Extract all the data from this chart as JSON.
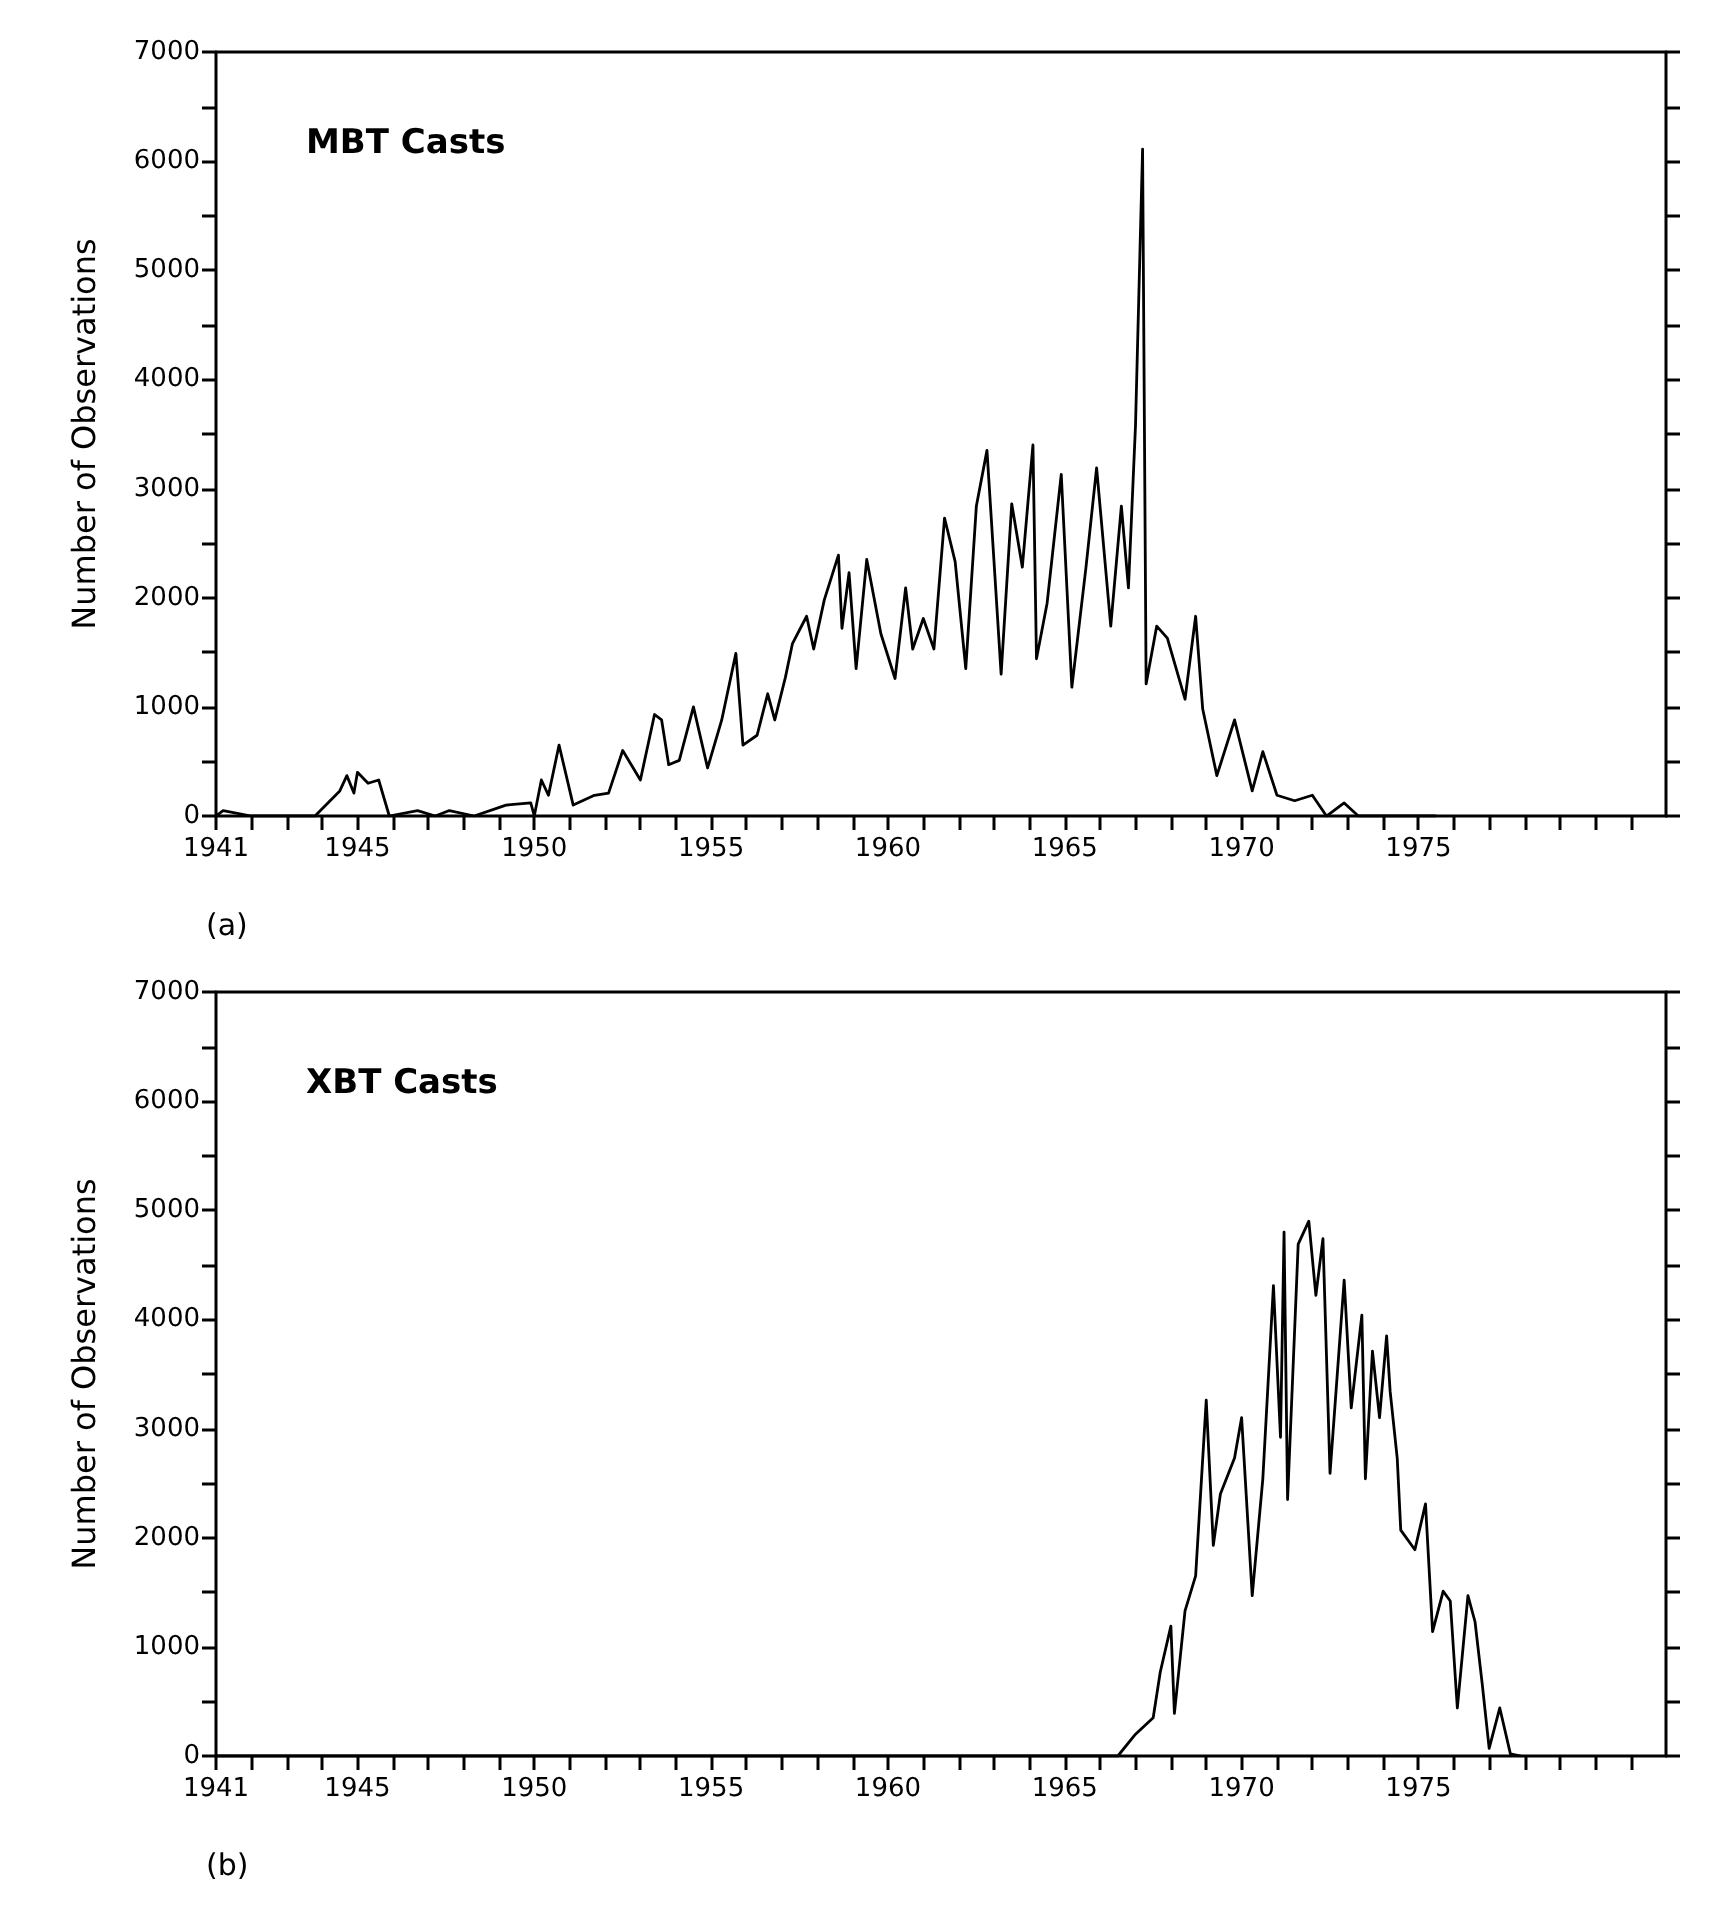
{
  "chart_data": [
    {
      "type": "line",
      "title": "MBT Casts",
      "ylabel": "Number of Observations",
      "annotations": [
        "(a)"
      ],
      "grid": false,
      "marker": "none",
      "line_style": "solid",
      "xlim": [
        1941,
        1982
      ],
      "ylim": [
        0,
        7000
      ],
      "xticks": [
        1941,
        {
          "value": 1942,
          "label": null
        },
        {
          "value": 1943,
          "label": null
        },
        {
          "value": 1944,
          "label": null
        },
        1945,
        {
          "value": 1946,
          "label": null
        },
        {
          "value": 1947,
          "label": null
        },
        {
          "value": 1948,
          "label": null
        },
        {
          "value": 1949,
          "label": null
        },
        1950,
        {
          "value": 1951,
          "label": null
        },
        {
          "value": 1952,
          "label": null
        },
        {
          "value": 1953,
          "label": null
        },
        {
          "value": 1954,
          "label": null
        },
        1955,
        {
          "value": 1956,
          "label": null
        },
        {
          "value": 1957,
          "label": null
        },
        {
          "value": 1958,
          "label": null
        },
        {
          "value": 1959,
          "label": null
        },
        1960,
        {
          "value": 1961,
          "label": null
        },
        {
          "value": 1962,
          "label": null
        },
        {
          "value": 1963,
          "label": null
        },
        {
          "value": 1964,
          "label": null
        },
        1965,
        {
          "value": 1966,
          "label": null
        },
        {
          "value": 1967,
          "label": null
        },
        {
          "value": 1968,
          "label": null
        },
        {
          "value": 1969,
          "label": null
        },
        1970,
        {
          "value": 1971,
          "label": null
        },
        {
          "value": 1972,
          "label": null
        },
        {
          "value": 1973,
          "label": null
        },
        {
          "value": 1974,
          "label": null
        },
        1975,
        {
          "value": 1976,
          "label": null
        },
        {
          "value": 1977,
          "label": null
        },
        {
          "value": 1978,
          "label": null
        },
        {
          "value": 1979,
          "label": null
        },
        {
          "value": 1980,
          "label": null
        },
        {
          "value": 1981,
          "label": null
        }
      ],
      "yticks": [
        0,
        {
          "value": 500,
          "label": null
        },
        1000,
        {
          "value": 1500,
          "label": null
        },
        2000,
        {
          "value": 2500,
          "label": null
        },
        3000,
        {
          "value": 3500,
          "label": null
        },
        4000,
        {
          "value": 4500,
          "label": null
        },
        5000,
        {
          "value": 5500,
          "label": null
        },
        6000,
        {
          "value": 6500,
          "label": null
        },
        7000
      ],
      "series": [
        {
          "color": "#000000",
          "x": [
            1941,
            1941.2,
            1942,
            1943.8,
            1944.5,
            1944.7,
            1944.9,
            1945,
            1945.3,
            1945.6,
            1945.9,
            1946.7,
            1947.2,
            1947.6,
            1948.3,
            1949.2,
            1949.9,
            1950,
            1950.2,
            1950.4,
            1950.7,
            1951.1,
            1951.7,
            1952.1,
            1952.5,
            1953,
            1953.4,
            1953.6,
            1953.8,
            1954.1,
            1954.5,
            1954.9,
            1955.3,
            1955.7,
            1955.9,
            1956.3,
            1956.6,
            1956.8,
            1957.1,
            1957.3,
            1957.7,
            1957.9,
            1958.2,
            1958.6,
            1958.7,
            1958.9,
            1959.1,
            1959.4,
            1959.8,
            1960.2,
            1960.5,
            1960.7,
            1961,
            1961.3,
            1961.6,
            1961.9,
            1962.2,
            1962.5,
            1962.8,
            1963.2,
            1963.5,
            1963.8,
            1964.1,
            1964.2,
            1964.5,
            1964.9,
            1965.2,
            1965.6,
            1965.9,
            1966.3,
            1966.6,
            1966.8,
            1967,
            1967.2,
            1967.3,
            1967.6,
            1967.9,
            1968.4,
            1968.7,
            1968.9,
            1969.3,
            1969.8,
            1970.3,
            1970.6,
            1971,
            1971.5,
            1972,
            1972.4,
            1972.9,
            1973.3,
            1974.3,
            1975.5
          ],
          "values": [
            0,
            50,
            0,
            0,
            230,
            370,
            210,
            400,
            300,
            330,
            0,
            50,
            0,
            50,
            0,
            100,
            120,
            0,
            330,
            190,
            650,
            100,
            190,
            210,
            600,
            330,
            930,
            880,
            470,
            510,
            1000,
            440,
            880,
            1490,
            650,
            740,
            1120,
            880,
            1270,
            1580,
            1830,
            1530,
            1980,
            2390,
            1720,
            2230,
            1350,
            2350,
            1670,
            1260,
            2090,
            1530,
            1810,
            1530,
            2730,
            2330,
            1350,
            2840,
            3350,
            1300,
            2860,
            2280,
            3400,
            1440,
            1950,
            3130,
            1180,
            2280,
            3190,
            1740,
            2840,
            2090,
            3580,
            6110,
            1210,
            1740,
            1630,
            1070,
            1830,
            980,
            370,
            880,
            230,
            590,
            190,
            140,
            190,
            0,
            120,
            0,
            0,
            0
          ]
        }
      ]
    },
    {
      "type": "line",
      "title": "XBT Casts",
      "ylabel": "Number of Observations",
      "annotations": [
        "(b)"
      ],
      "grid": false,
      "marker": "none",
      "line_style": "solid",
      "xlim": [
        1941,
        1982
      ],
      "ylim": [
        0,
        7000
      ],
      "xticks": [
        1941,
        {
          "value": 1942,
          "label": null
        },
        {
          "value": 1943,
          "label": null
        },
        {
          "value": 1944,
          "label": null
        },
        1945,
        {
          "value": 1946,
          "label": null
        },
        {
          "value": 1947,
          "label": null
        },
        {
          "value": 1948,
          "label": null
        },
        {
          "value": 1949,
          "label": null
        },
        1950,
        {
          "value": 1951,
          "label": null
        },
        {
          "value": 1952,
          "label": null
        },
        {
          "value": 1953,
          "label": null
        },
        {
          "value": 1954,
          "label": null
        },
        1955,
        {
          "value": 1956,
          "label": null
        },
        {
          "value": 1957,
          "label": null
        },
        {
          "value": 1958,
          "label": null
        },
        {
          "value": 1959,
          "label": null
        },
        1960,
        {
          "value": 1961,
          "label": null
        },
        {
          "value": 1962,
          "label": null
        },
        {
          "value": 1963,
          "label": null
        },
        {
          "value": 1964,
          "label": null
        },
        1965,
        {
          "value": 1966,
          "label": null
        },
        {
          "value": 1967,
          "label": null
        },
        {
          "value": 1968,
          "label": null
        },
        {
          "value": 1969,
          "label": null
        },
        1970,
        {
          "value": 1971,
          "label": null
        },
        {
          "value": 1972,
          "label": null
        },
        {
          "value": 1973,
          "label": null
        },
        {
          "value": 1974,
          "label": null
        },
        1975,
        {
          "value": 1976,
          "label": null
        },
        {
          "value": 1977,
          "label": null
        },
        {
          "value": 1978,
          "label": null
        },
        {
          "value": 1979,
          "label": null
        },
        {
          "value": 1980,
          "label": null
        },
        {
          "value": 1981,
          "label": null
        }
      ],
      "yticks": [
        0,
        {
          "value": 500,
          "label": null
        },
        1000,
        {
          "value": 1500,
          "label": null
        },
        2000,
        {
          "value": 2500,
          "label": null
        },
        3000,
        {
          "value": 3500,
          "label": null
        },
        4000,
        {
          "value": 4500,
          "label": null
        },
        5000,
        {
          "value": 5500,
          "label": null
        },
        6000,
        {
          "value": 6500,
          "label": null
        },
        7000
      ],
      "series": [
        {
          "color": "#000000",
          "x": [
            1941,
            1966.5,
            1967,
            1967.5,
            1967.7,
            1968,
            1968.1,
            1968.4,
            1968.7,
            1969,
            1969.2,
            1969.4,
            1969.8,
            1970,
            1970.3,
            1970.6,
            1970.9,
            1971.1,
            1971.2,
            1971.3,
            1971.6,
            1971.9,
            1972.1,
            1972.3,
            1972.5,
            1972.9,
            1973.1,
            1973.4,
            1973.5,
            1973.7,
            1973.9,
            1974.1,
            1974.2,
            1974.4,
            1974.5,
            1974.9,
            1975.2,
            1975.4,
            1975.7,
            1975.9,
            1976.1,
            1976.4,
            1976.6,
            1976.8,
            1977,
            1977.3,
            1977.6,
            1977.9
          ],
          "values": [
            0,
            0,
            200,
            350,
            770,
            1190,
            390,
            1330,
            1650,
            3260,
            1930,
            2400,
            2730,
            3100,
            1470,
            2540,
            4310,
            2920,
            4800,
            2350,
            4690,
            4900,
            4220,
            4740,
            2590,
            4360,
            3190,
            4040,
            2540,
            3710,
            3100,
            3850,
            3340,
            2730,
            2070,
            1890,
            2310,
            1140,
            1510,
            1420,
            440,
            1470,
            1230,
            670,
            70,
            440,
            20,
            0
          ]
        }
      ]
    }
  ]
}
